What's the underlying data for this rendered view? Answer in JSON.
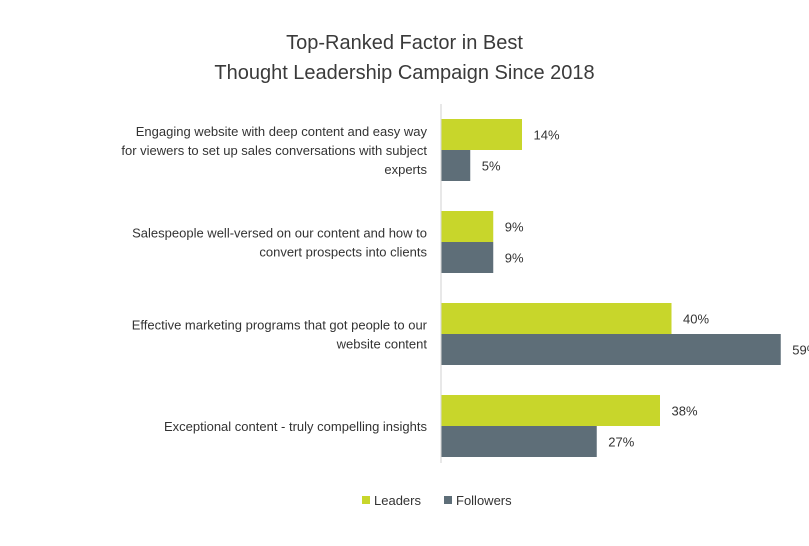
{
  "chart_data": {
    "type": "bar",
    "orientation": "horizontal",
    "title_lines": [
      "Top-Ranked Factor in Best",
      "Thought Leadership Campaign Since 2018"
    ],
    "categories": [
      {
        "lines": [
          "Engaging website with deep content and easy way",
          "for viewers to set up sales conversations with subject",
          "experts"
        ]
      },
      {
        "lines": [
          "Salespeople well-versed on our content and how to",
          "convert prospects into clients"
        ]
      },
      {
        "lines": [
          "Effective marketing programs that got people to our",
          "website content"
        ]
      },
      {
        "lines": [
          "Exceptional content - truly compelling insights"
        ]
      }
    ],
    "series": [
      {
        "name": "Leaders",
        "color": "#c8d62b",
        "values": [
          14,
          9,
          40,
          38
        ]
      },
      {
        "name": "Followers",
        "color": "#5e6e78",
        "values": [
          5,
          9,
          59,
          27
        ]
      }
    ],
    "value_suffix": "%",
    "xlim": [
      0,
      60
    ],
    "grid": false,
    "legend_position": "bottom"
  }
}
